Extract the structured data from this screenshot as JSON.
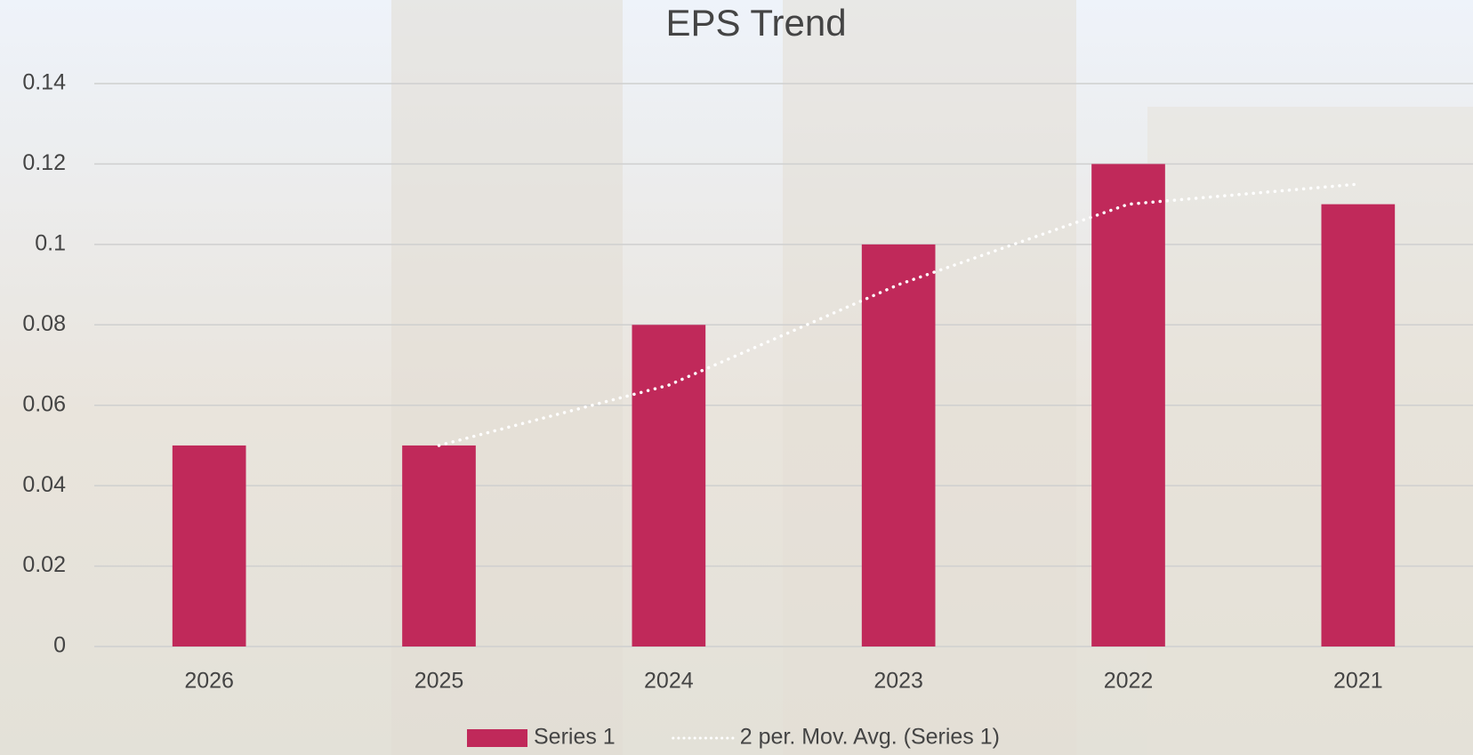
{
  "chart_data": {
    "type": "bar",
    "title": "EPS Trend",
    "categories": [
      "2026",
      "2025",
      "2024",
      "2023",
      "2022",
      "2021"
    ],
    "series": [
      {
        "name": "Series 1",
        "type": "bar",
        "color": "#c0295a",
        "values": [
          0.05,
          0.05,
          0.08,
          0.1,
          0.12,
          0.11
        ]
      },
      {
        "name": "2 per. Mov. Avg. (Series 1)",
        "type": "line",
        "color": "#ffffff",
        "values": [
          null,
          0.05,
          0.065,
          0.09,
          0.11,
          0.115
        ]
      }
    ],
    "ylim": [
      0,
      0.14
    ],
    "yticks": [
      0,
      0.02,
      0.04,
      0.06,
      0.08,
      0.1,
      0.12,
      0.14
    ],
    "grid": true,
    "legend": "bottom"
  }
}
